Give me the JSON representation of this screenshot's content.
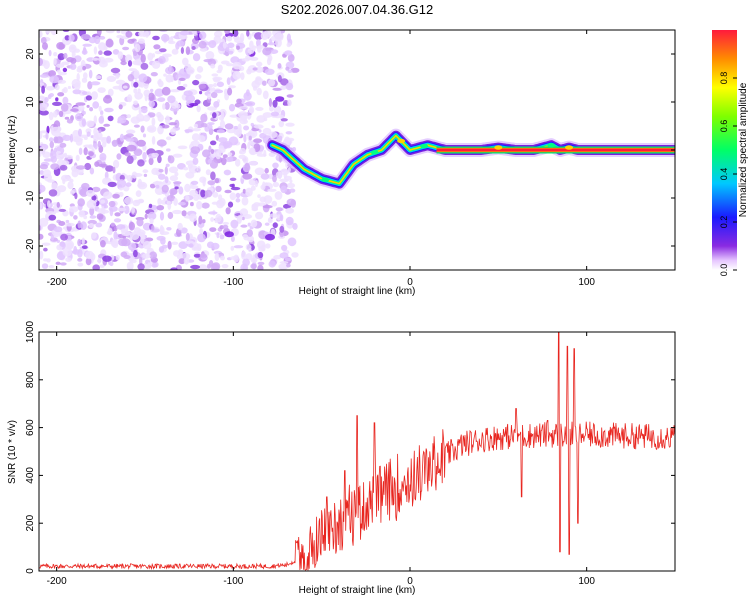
{
  "title": "S202.2026.007.04.36.G12",
  "colors": {
    "snr_line": "#e8251f",
    "colorbar_top": "#ff1a3c"
  },
  "chart_data": [
    {
      "type": "heatmap",
      "xlabel": "Height of straight line (km)",
      "ylabel": "Frequency (Hz)",
      "xlim": [
        -210,
        150
      ],
      "ylim": [
        -25,
        25
      ],
      "xticks": [
        -200,
        -100,
        0,
        100
      ],
      "xtick_labels": [
        "-200",
        "-100",
        "0",
        "100"
      ],
      "yticks": [
        -20,
        -10,
        0,
        10,
        20
      ],
      "ytick_labels": [
        "-20",
        "-10",
        "0",
        "10",
        "20"
      ],
      "noise_region_x": [
        -210,
        -65
      ],
      "ridge": {
        "x": [
          -78,
          -72,
          -66,
          -60,
          -55,
          -50,
          -45,
          -40,
          -36,
          -32,
          -28,
          -24,
          -20,
          -16,
          -12,
          -8,
          -4,
          0,
          5,
          10,
          15,
          20,
          30,
          40,
          50,
          60,
          70,
          75,
          80,
          85,
          90,
          95,
          100,
          120,
          150
        ],
        "freq": [
          1,
          0,
          -2,
          -4,
          -5,
          -6,
          -6.5,
          -7,
          -5,
          -3,
          -2,
          -1,
          -0.5,
          0,
          1.5,
          3,
          1.5,
          0,
          0.5,
          1,
          0.5,
          0,
          0,
          0,
          0.5,
          0,
          0,
          0.5,
          1,
          0,
          0.5,
          0,
          0,
          0,
          0
        ]
      }
    },
    {
      "type": "colorbar",
      "label": "Normalized spectral amplitude",
      "range": [
        0,
        1
      ],
      "ticks": [
        0.0,
        0.2,
        0.4,
        0.6,
        0.8
      ],
      "tick_labels": [
        "0.0",
        "0.2",
        "0.4",
        "0.6",
        "0.8"
      ]
    },
    {
      "type": "line",
      "xlabel": "Height of straight line (km)",
      "ylabel": "SNR (10 * v/v)",
      "xlim": [
        -210,
        150
      ],
      "ylim": [
        0,
        1000
      ],
      "xticks": [
        -200,
        -100,
        0,
        100
      ],
      "xtick_labels": [
        "-200",
        "-100",
        "0",
        "100"
      ],
      "yticks": [
        0,
        200,
        400,
        600,
        800,
        1000
      ],
      "ytick_labels": [
        "0",
        "200",
        "400",
        "600",
        "800",
        "1000"
      ],
      "envelope": {
        "x": [
          -210,
          -80,
          -70,
          -60,
          -50,
          -40,
          -30,
          -20,
          -10,
          0,
          10,
          20,
          30,
          40,
          50,
          60,
          80,
          100,
          150
        ],
        "mean": [
          20,
          20,
          25,
          60,
          150,
          200,
          250,
          300,
          340,
          380,
          420,
          480,
          530,
          550,
          560,
          565,
          570,
          570,
          560
        ]
      },
      "spikes": [
        {
          "x": -47,
          "y": 310
        },
        {
          "x": -37,
          "y": 420
        },
        {
          "x": -30,
          "y": 650
        },
        {
          "x": -20,
          "y": 620
        },
        {
          "x": 60,
          "y": 680
        },
        {
          "x": 63,
          "y": 310
        },
        {
          "x": 78,
          "y": 630
        },
        {
          "x": 84,
          "y": 1000
        },
        {
          "x": 85,
          "y": 80
        },
        {
          "x": 89,
          "y": 940
        },
        {
          "x": 90,
          "y": 70
        },
        {
          "x": 93,
          "y": 930
        },
        {
          "x": 95,
          "y": 200
        }
      ]
    }
  ]
}
